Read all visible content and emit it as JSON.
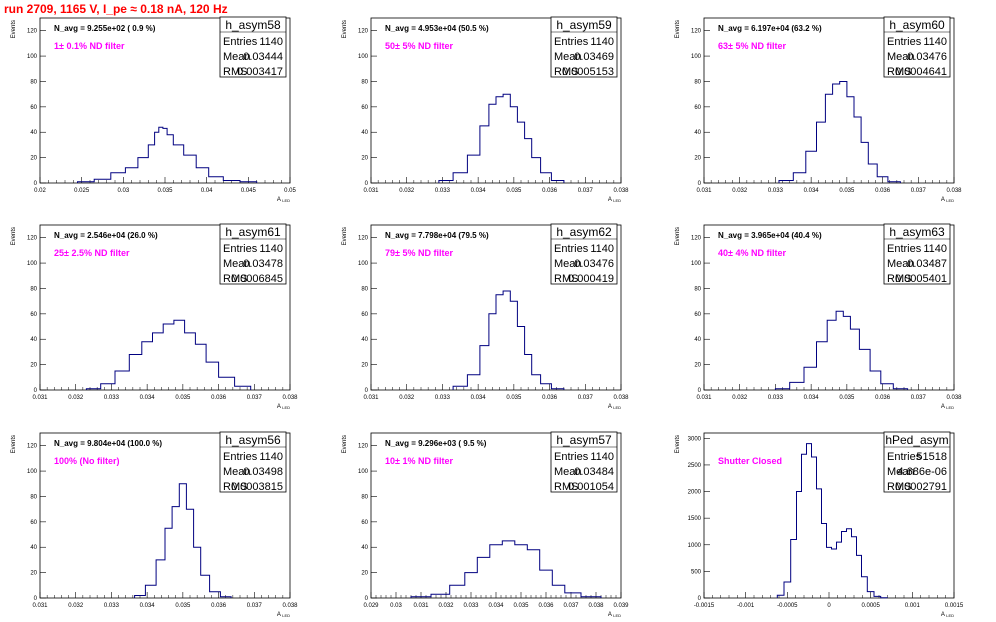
{
  "title": "run 2709,  1165 V, I_pe ≈ 0.18 nA, 120 Hz",
  "colors": {
    "title": "#ff0000",
    "note": "#ff00ff",
    "hist": "#000080"
  },
  "chart_data": [
    {
      "type": "bar",
      "name": "h_asym58",
      "navg": "N_avg = 9.255e+02 ( 0.9 %)",
      "note": "1± 0.1% ND filter",
      "stats": {
        "entries": "1140",
        "mean": "0.03444",
        "rms": "0.003417"
      },
      "xlabel": "A",
      "xlabel_sub": "LED",
      "ylabel": "Events",
      "xlim": [
        0.02,
        0.05
      ],
      "ylim": [
        0,
        130
      ],
      "xticks": [
        "0.02",
        "0.025",
        "0.03",
        "0.035",
        "0.04",
        "0.045",
        "0.05"
      ],
      "yticks": [
        "0",
        "20",
        "40",
        "60",
        "80",
        "100",
        "120"
      ],
      "x": [
        0.0255,
        0.0275,
        0.0295,
        0.031,
        0.0325,
        0.0335,
        0.034,
        0.0345,
        0.035,
        0.0355,
        0.0365,
        0.038,
        0.0395,
        0.041,
        0.043,
        0.045
      ],
      "values": [
        1,
        3,
        8,
        12,
        20,
        30,
        40,
        44,
        43,
        38,
        30,
        22,
        12,
        5,
        2,
        1
      ]
    },
    {
      "type": "bar",
      "name": "h_asym59",
      "navg": "N_avg = 4.953e+04 (50.5 %)",
      "note": "50± 5% ND filter",
      "stats": {
        "entries": "1140",
        "mean": "0.03469",
        "rms": "0.0005153"
      },
      "xlabel": "A",
      "xlabel_sub": "LED",
      "ylabel": "Events",
      "xlim": [
        0.031,
        0.038
      ],
      "ylim": [
        0,
        130
      ],
      "xticks": [
        "0.031",
        "0.032",
        "0.033",
        "0.034",
        "0.035",
        "0.036",
        "0.037",
        "0.038"
      ],
      "yticks": [
        "0",
        "20",
        "40",
        "60",
        "80",
        "100",
        "120"
      ],
      "x": [
        0.0331,
        0.0335,
        0.0339,
        0.0342,
        0.0344,
        0.0346,
        0.0348,
        0.035,
        0.0352,
        0.0354,
        0.0356,
        0.0359,
        0.0362
      ],
      "values": [
        2,
        8,
        22,
        45,
        62,
        68,
        70,
        60,
        48,
        35,
        20,
        8,
        2
      ]
    },
    {
      "type": "bar",
      "name": "h_asym60",
      "navg": "N_avg = 6.197e+04 (63.2 %)",
      "note": "63± 5% ND filter",
      "stats": {
        "entries": "1140",
        "mean": "0.03476",
        "rms": "0.0004641"
      },
      "xlabel": "A",
      "xlabel_sub": "LED",
      "ylabel": "Events",
      "xlim": [
        0.031,
        0.038
      ],
      "ylim": [
        0,
        130
      ],
      "xticks": [
        "0.031",
        "0.032",
        "0.033",
        "0.034",
        "0.035",
        "0.036",
        "0.037",
        "0.038"
      ],
      "yticks": [
        "0",
        "20",
        "40",
        "60",
        "80",
        "100",
        "120"
      ],
      "x": [
        0.0333,
        0.0337,
        0.034,
        0.0343,
        0.0345,
        0.0347,
        0.0349,
        0.0351,
        0.0353,
        0.0355,
        0.0357,
        0.036,
        0.0363
      ],
      "values": [
        2,
        8,
        25,
        48,
        70,
        78,
        80,
        68,
        52,
        32,
        15,
        5,
        1
      ]
    },
    {
      "type": "bar",
      "name": "h_asym61",
      "navg": "N_avg = 2.546e+04 (26.0 %)",
      "note": "25± 2.5% ND filter",
      "stats": {
        "entries": "1140",
        "mean": "0.03478",
        "rms": "0.0006845"
      },
      "xlabel": "A",
      "xlabel_sub": "LED",
      "ylabel": "Events",
      "xlim": [
        0.031,
        0.038
      ],
      "ylim": [
        0,
        130
      ],
      "xticks": [
        "0.031",
        "0.032",
        "0.033",
        "0.034",
        "0.035",
        "0.036",
        "0.037",
        "0.038"
      ],
      "yticks": [
        "0",
        "20",
        "40",
        "60",
        "80",
        "100",
        "120"
      ],
      "x": [
        0.0325,
        0.0329,
        0.0333,
        0.0337,
        0.034,
        0.0343,
        0.0346,
        0.0349,
        0.0352,
        0.0355,
        0.0358,
        0.0362,
        0.0367
      ],
      "values": [
        1,
        5,
        15,
        28,
        38,
        45,
        52,
        55,
        45,
        36,
        22,
        10,
        3
      ]
    },
    {
      "type": "bar",
      "name": "h_asym62",
      "navg": "N_avg = 7.798e+04 (79.5 %)",
      "note": "79± 5% ND filter",
      "stats": {
        "entries": "1140",
        "mean": "0.03476",
        "rms": "0.000419"
      },
      "xlabel": "A",
      "xlabel_sub": "LED",
      "ylabel": "Events",
      "xlim": [
        0.031,
        0.038
      ],
      "ylim": [
        0,
        130
      ],
      "xticks": [
        "0.031",
        "0.032",
        "0.033",
        "0.034",
        "0.035",
        "0.036",
        "0.037",
        "0.038"
      ],
      "yticks": [
        "0",
        "20",
        "40",
        "60",
        "80",
        "100",
        "120"
      ],
      "x": [
        0.0335,
        0.0339,
        0.0342,
        0.0344,
        0.0346,
        0.0348,
        0.035,
        0.0352,
        0.0354,
        0.0356,
        0.0359,
        0.0362
      ],
      "values": [
        3,
        12,
        35,
        60,
        75,
        78,
        70,
        50,
        28,
        12,
        5,
        1
      ]
    },
    {
      "type": "bar",
      "name": "h_asym63",
      "navg": "N_avg = 3.965e+04 (40.4 %)",
      "note": "40± 4% ND filter",
      "stats": {
        "entries": "1140",
        "mean": "0.03487",
        "rms": "0.0005401"
      },
      "xlabel": "A",
      "xlabel_sub": "LED",
      "ylabel": "Events",
      "xlim": [
        0.031,
        0.038
      ],
      "ylim": [
        0,
        130
      ],
      "xticks": [
        "0.031",
        "0.032",
        "0.033",
        "0.034",
        "0.035",
        "0.036",
        "0.037",
        "0.038"
      ],
      "yticks": [
        "0",
        "20",
        "40",
        "60",
        "80",
        "100",
        "120"
      ],
      "x": [
        0.0332,
        0.0336,
        0.034,
        0.0343,
        0.0346,
        0.0348,
        0.035,
        0.0352,
        0.0355,
        0.0358,
        0.0361,
        0.0365
      ],
      "values": [
        1,
        6,
        18,
        38,
        55,
        62,
        58,
        48,
        32,
        15,
        5,
        1
      ]
    },
    {
      "type": "bar",
      "name": "h_asym56",
      "navg": "N_avg = 9.804e+04 (100.0 %)",
      "note": "100% (No filter)",
      "stats": {
        "entries": "1140",
        "mean": "0.03498",
        "rms": "0.0003815"
      },
      "xlabel": "A",
      "xlabel_sub": "LED",
      "ylabel": "Events",
      "xlim": [
        0.031,
        0.038
      ],
      "ylim": [
        0,
        130
      ],
      "xticks": [
        "0.031",
        "0.032",
        "0.033",
        "0.034",
        "0.035",
        "0.036",
        "0.037",
        "0.038"
      ],
      "yticks": [
        "0",
        "20",
        "40",
        "60",
        "80",
        "100",
        "120"
      ],
      "x": [
        0.0338,
        0.0341,
        0.0344,
        0.0346,
        0.0348,
        0.035,
        0.0352,
        0.0354,
        0.0356,
        0.0359,
        0.0362
      ],
      "values": [
        2,
        10,
        30,
        55,
        72,
        90,
        70,
        40,
        18,
        5,
        1
      ]
    },
    {
      "type": "bar",
      "name": "h_asym57",
      "navg": "N_avg = 9.296e+03 ( 9.5 %)",
      "note": "10± 1% ND filter",
      "stats": {
        "entries": "1140",
        "mean": "0.03484",
        "rms": "0.001054"
      },
      "xlabel": "A",
      "xlabel_sub": "LED",
      "ylabel": "Events",
      "xlim": [
        0.029,
        0.039
      ],
      "ylim": [
        0,
        130
      ],
      "xticks": [
        "0.029",
        "0.03",
        "0.031",
        "0.032",
        "0.033",
        "0.034",
        "0.035",
        "0.036",
        "0.037",
        "0.038",
        "0.039"
      ],
      "yticks": [
        "0",
        "20",
        "40",
        "60",
        "80",
        "100",
        "120"
      ],
      "x": [
        0.031,
        0.0318,
        0.0325,
        0.033,
        0.0335,
        0.034,
        0.0345,
        0.035,
        0.0355,
        0.036,
        0.0365,
        0.037,
        0.0378
      ],
      "values": [
        1,
        3,
        10,
        20,
        32,
        42,
        45,
        42,
        38,
        22,
        10,
        4,
        1
      ]
    },
    {
      "type": "bar",
      "name": "hPed_asym",
      "navg": "",
      "note": "Shutter Closed",
      "stats": {
        "entries": "51518",
        "mean": "4.686e-06",
        "rms": "0.0002791"
      },
      "xlabel": "A",
      "xlabel_sub": "LED",
      "ylabel": "Events",
      "xlim": [
        -0.0015,
        0.0015
      ],
      "ylim": [
        0,
        3100
      ],
      "xticks": [
        "-0.0015",
        "-0.001",
        "-0.0005",
        "0",
        "0.0005",
        "0.001",
        "0.0015"
      ],
      "yticks": [
        "0",
        "500",
        "1000",
        "1500",
        "2000",
        "2500",
        "3000"
      ],
      "x": [
        -0.00058,
        -0.0005,
        -0.00042,
        -0.00036,
        -0.0003,
        -0.00024,
        -0.00018,
        -0.00012,
        -6e-05,
        0,
        6e-05,
        0.00012,
        0.00018,
        0.00024,
        0.0003,
        0.00036,
        0.00042,
        0.0005,
        0.00058,
        0.00066
      ],
      "values": [
        50,
        300,
        1100,
        2000,
        2700,
        2900,
        2650,
        2050,
        1400,
        950,
        920,
        1050,
        1250,
        1300,
        1150,
        800,
        400,
        120,
        30,
        5
      ]
    }
  ]
}
